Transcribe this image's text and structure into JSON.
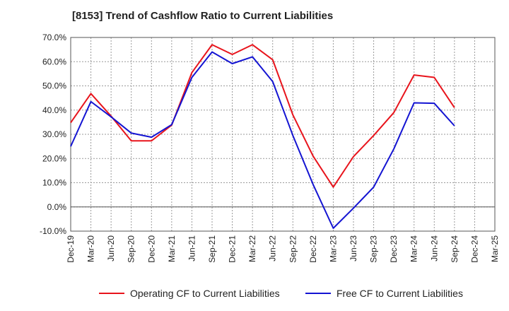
{
  "chart_data": {
    "type": "line",
    "title": "[8153]  Trend of Cashflow Ratio to Current Liabilities",
    "xlabel": "",
    "ylabel": "",
    "ylim": [
      -10,
      70
    ],
    "y_ticks": [
      "70.0%",
      "60.0%",
      "50.0%",
      "40.0%",
      "30.0%",
      "20.0%",
      "10.0%",
      "0.0%",
      "-10.0%"
    ],
    "y_tick_values": [
      70,
      60,
      50,
      40,
      30,
      20,
      10,
      0,
      -10
    ],
    "categories": [
      "Dec-19",
      "Mar-20",
      "Jun-20",
      "Sep-20",
      "Dec-20",
      "Mar-21",
      "Jun-21",
      "Sep-21",
      "Dec-21",
      "Mar-22",
      "Jun-22",
      "Sep-22",
      "Dec-22",
      "Mar-23",
      "Jun-23",
      "Sep-23",
      "Dec-23",
      "Mar-24",
      "Jun-24",
      "Sep-24",
      "Dec-24",
      "Mar-25"
    ],
    "grid": true,
    "legend_position": "bottom",
    "series": [
      {
        "name": "Operating CF to Current Liabilities",
        "color": "#e8141c",
        "values": [
          34.8,
          46.8,
          37.5,
          27.3,
          27.3,
          33.8,
          55.5,
          67.0,
          63.0,
          67.0,
          60.8,
          38.0,
          21.0,
          8.2,
          20.8,
          29.5,
          39.0,
          54.5,
          53.5,
          41.0,
          null,
          null
        ]
      },
      {
        "name": "Free CF to Current Liabilities",
        "color": "#1414d2",
        "values": [
          25.0,
          43.5,
          37.2,
          30.5,
          28.8,
          34.0,
          53.5,
          64.0,
          59.2,
          62.0,
          51.8,
          29.5,
          9.3,
          -8.8,
          -0.5,
          8.2,
          24.0,
          43.0,
          42.8,
          33.5,
          null,
          null
        ]
      }
    ]
  }
}
